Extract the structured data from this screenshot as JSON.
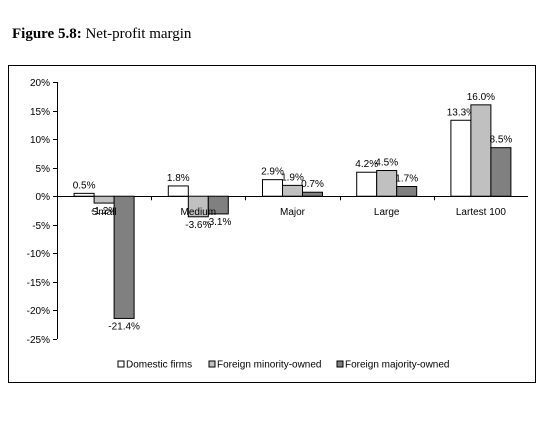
{
  "figure": {
    "label": "Figure 5.8:",
    "caption": "Net-profit margin"
  },
  "chart_data": {
    "type": "bar",
    "title": "",
    "xlabel": "",
    "ylabel": "",
    "categories": [
      "Small",
      "Medium",
      "Major",
      "Large",
      "Lartest 100"
    ],
    "series": [
      {
        "name": "Domestic firms",
        "values": [
          0.5,
          1.8,
          2.9,
          4.2,
          13.3
        ],
        "labels": [
          "0.5%",
          "1.8%",
          "2.9%",
          "4.2%",
          "13.3%"
        ],
        "color": "#ffffff"
      },
      {
        "name": "Foreign minority-owned",
        "values": [
          -1.2,
          -3.6,
          1.9,
          4.5,
          16.0
        ],
        "labels": [
          "-1.2%",
          "-3.6%",
          "1.9%",
          "4.5%",
          "16.0%"
        ],
        "color": "#c0c0c0"
      },
      {
        "name": "Foreign majority-owned",
        "values": [
          -21.4,
          -3.1,
          0.7,
          1.7,
          8.5
        ],
        "labels": [
          "-21.4%",
          "-3.1%",
          "0.7%",
          "1.7%",
          "8.5%"
        ],
        "color": "#808080"
      }
    ],
    "ylim": [
      -25,
      20
    ],
    "yticks": [
      20,
      15,
      10,
      5,
      0,
      -5,
      -10,
      -15,
      -20,
      -25
    ],
    "ytick_labels": [
      "20%",
      "15%",
      "10%",
      "5%",
      "0%",
      "-5%",
      "-10%",
      "-15%",
      "-20%",
      "-25%"
    ],
    "grid": false,
    "legend_position": "bottom"
  }
}
